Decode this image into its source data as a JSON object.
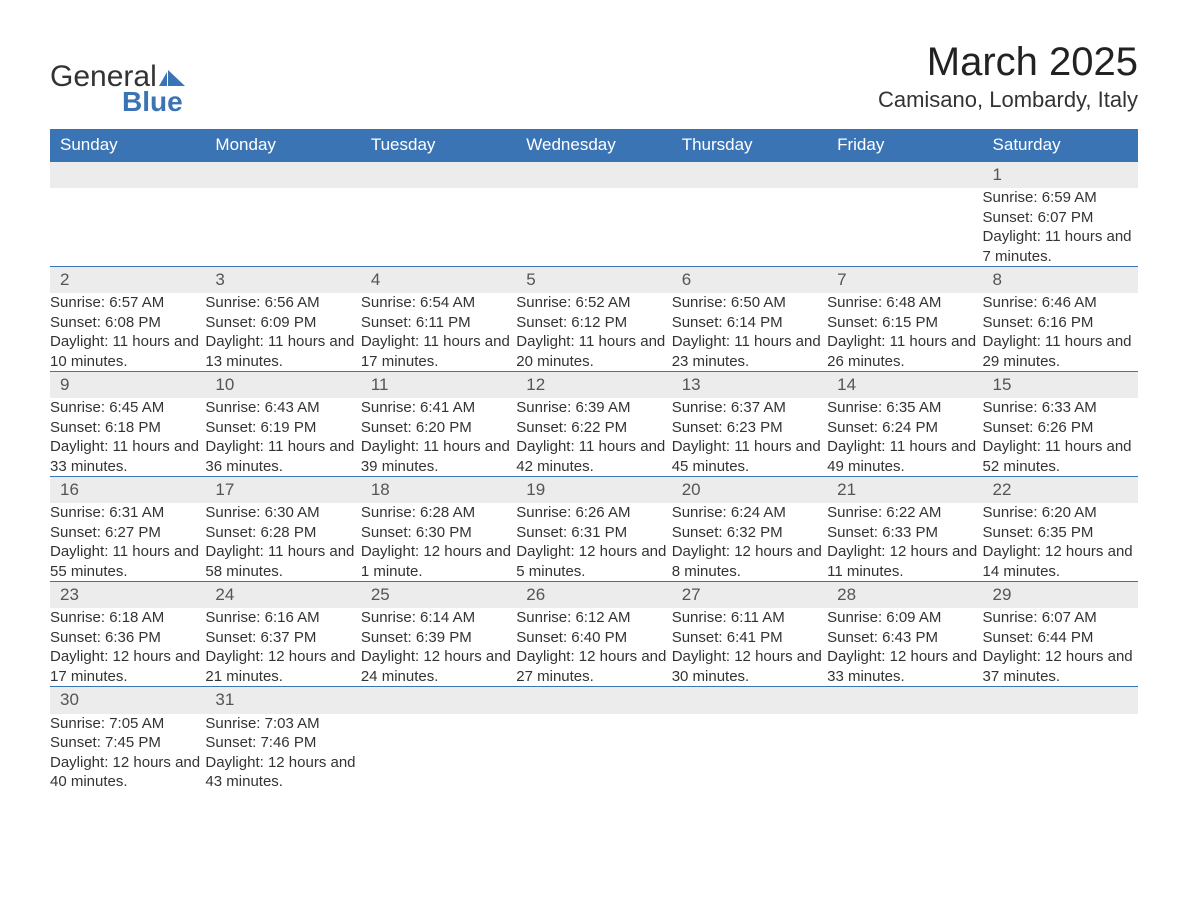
{
  "logo": {
    "text1": "General",
    "text2": "Blue",
    "accent_color": "#3a74b5"
  },
  "title": "March 2025",
  "location": "Camisano, Lombardy, Italy",
  "weekday_headers": [
    "Sunday",
    "Monday",
    "Tuesday",
    "Wednesday",
    "Thursday",
    "Friday",
    "Saturday"
  ],
  "colors": {
    "header_bg": "#3a74b5",
    "header_text": "#ffffff",
    "row_divider": "#3a74b5",
    "daynum_bg": "#ececec",
    "text": "#333333",
    "background": "#ffffff"
  },
  "weeks": [
    [
      null,
      null,
      null,
      null,
      null,
      null,
      {
        "day": "1",
        "sunrise": "Sunrise: 6:59 AM",
        "sunset": "Sunset: 6:07 PM",
        "daylight": "Daylight: 11 hours and 7 minutes."
      }
    ],
    [
      {
        "day": "2",
        "sunrise": "Sunrise: 6:57 AM",
        "sunset": "Sunset: 6:08 PM",
        "daylight": "Daylight: 11 hours and 10 minutes."
      },
      {
        "day": "3",
        "sunrise": "Sunrise: 6:56 AM",
        "sunset": "Sunset: 6:09 PM",
        "daylight": "Daylight: 11 hours and 13 minutes."
      },
      {
        "day": "4",
        "sunrise": "Sunrise: 6:54 AM",
        "sunset": "Sunset: 6:11 PM",
        "daylight": "Daylight: 11 hours and 17 minutes."
      },
      {
        "day": "5",
        "sunrise": "Sunrise: 6:52 AM",
        "sunset": "Sunset: 6:12 PM",
        "daylight": "Daylight: 11 hours and 20 minutes."
      },
      {
        "day": "6",
        "sunrise": "Sunrise: 6:50 AM",
        "sunset": "Sunset: 6:14 PM",
        "daylight": "Daylight: 11 hours and 23 minutes."
      },
      {
        "day": "7",
        "sunrise": "Sunrise: 6:48 AM",
        "sunset": "Sunset: 6:15 PM",
        "daylight": "Daylight: 11 hours and 26 minutes."
      },
      {
        "day": "8",
        "sunrise": "Sunrise: 6:46 AM",
        "sunset": "Sunset: 6:16 PM",
        "daylight": "Daylight: 11 hours and 29 minutes."
      }
    ],
    [
      {
        "day": "9",
        "sunrise": "Sunrise: 6:45 AM",
        "sunset": "Sunset: 6:18 PM",
        "daylight": "Daylight: 11 hours and 33 minutes."
      },
      {
        "day": "10",
        "sunrise": "Sunrise: 6:43 AM",
        "sunset": "Sunset: 6:19 PM",
        "daylight": "Daylight: 11 hours and 36 minutes."
      },
      {
        "day": "11",
        "sunrise": "Sunrise: 6:41 AM",
        "sunset": "Sunset: 6:20 PM",
        "daylight": "Daylight: 11 hours and 39 minutes."
      },
      {
        "day": "12",
        "sunrise": "Sunrise: 6:39 AM",
        "sunset": "Sunset: 6:22 PM",
        "daylight": "Daylight: 11 hours and 42 minutes."
      },
      {
        "day": "13",
        "sunrise": "Sunrise: 6:37 AM",
        "sunset": "Sunset: 6:23 PM",
        "daylight": "Daylight: 11 hours and 45 minutes."
      },
      {
        "day": "14",
        "sunrise": "Sunrise: 6:35 AM",
        "sunset": "Sunset: 6:24 PM",
        "daylight": "Daylight: 11 hours and 49 minutes."
      },
      {
        "day": "15",
        "sunrise": "Sunrise: 6:33 AM",
        "sunset": "Sunset: 6:26 PM",
        "daylight": "Daylight: 11 hours and 52 minutes."
      }
    ],
    [
      {
        "day": "16",
        "sunrise": "Sunrise: 6:31 AM",
        "sunset": "Sunset: 6:27 PM",
        "daylight": "Daylight: 11 hours and 55 minutes."
      },
      {
        "day": "17",
        "sunrise": "Sunrise: 6:30 AM",
        "sunset": "Sunset: 6:28 PM",
        "daylight": "Daylight: 11 hours and 58 minutes."
      },
      {
        "day": "18",
        "sunrise": "Sunrise: 6:28 AM",
        "sunset": "Sunset: 6:30 PM",
        "daylight": "Daylight: 12 hours and 1 minute."
      },
      {
        "day": "19",
        "sunrise": "Sunrise: 6:26 AM",
        "sunset": "Sunset: 6:31 PM",
        "daylight": "Daylight: 12 hours and 5 minutes."
      },
      {
        "day": "20",
        "sunrise": "Sunrise: 6:24 AM",
        "sunset": "Sunset: 6:32 PM",
        "daylight": "Daylight: 12 hours and 8 minutes."
      },
      {
        "day": "21",
        "sunrise": "Sunrise: 6:22 AM",
        "sunset": "Sunset: 6:33 PM",
        "daylight": "Daylight: 12 hours and 11 minutes."
      },
      {
        "day": "22",
        "sunrise": "Sunrise: 6:20 AM",
        "sunset": "Sunset: 6:35 PM",
        "daylight": "Daylight: 12 hours and 14 minutes."
      }
    ],
    [
      {
        "day": "23",
        "sunrise": "Sunrise: 6:18 AM",
        "sunset": "Sunset: 6:36 PM",
        "daylight": "Daylight: 12 hours and 17 minutes."
      },
      {
        "day": "24",
        "sunrise": "Sunrise: 6:16 AM",
        "sunset": "Sunset: 6:37 PM",
        "daylight": "Daylight: 12 hours and 21 minutes."
      },
      {
        "day": "25",
        "sunrise": "Sunrise: 6:14 AM",
        "sunset": "Sunset: 6:39 PM",
        "daylight": "Daylight: 12 hours and 24 minutes."
      },
      {
        "day": "26",
        "sunrise": "Sunrise: 6:12 AM",
        "sunset": "Sunset: 6:40 PM",
        "daylight": "Daylight: 12 hours and 27 minutes."
      },
      {
        "day": "27",
        "sunrise": "Sunrise: 6:11 AM",
        "sunset": "Sunset: 6:41 PM",
        "daylight": "Daylight: 12 hours and 30 minutes."
      },
      {
        "day": "28",
        "sunrise": "Sunrise: 6:09 AM",
        "sunset": "Sunset: 6:43 PM",
        "daylight": "Daylight: 12 hours and 33 minutes."
      },
      {
        "day": "29",
        "sunrise": "Sunrise: 6:07 AM",
        "sunset": "Sunset: 6:44 PM",
        "daylight": "Daylight: 12 hours and 37 minutes."
      }
    ],
    [
      {
        "day": "30",
        "sunrise": "Sunrise: 7:05 AM",
        "sunset": "Sunset: 7:45 PM",
        "daylight": "Daylight: 12 hours and 40 minutes."
      },
      {
        "day": "31",
        "sunrise": "Sunrise: 7:03 AM",
        "sunset": "Sunset: 7:46 PM",
        "daylight": "Daylight: 12 hours and 43 minutes."
      },
      null,
      null,
      null,
      null,
      null
    ]
  ]
}
